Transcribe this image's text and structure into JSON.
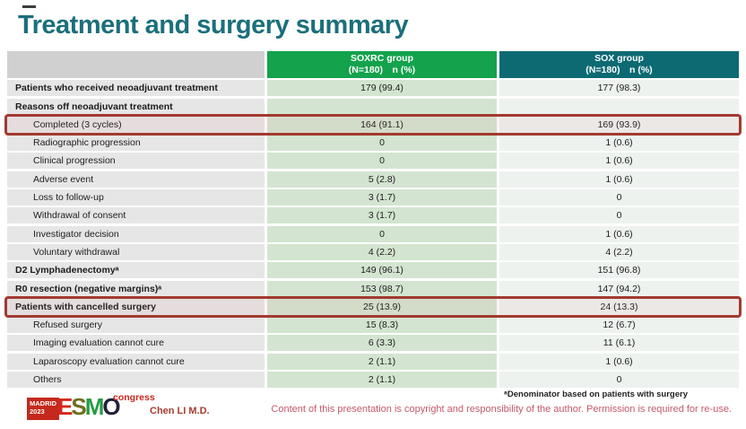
{
  "slide": {
    "title": "Treatment and surgery summary",
    "footnote": "ᵃDenominator based on patients with surgery",
    "copyright": "Content of this presentation is copyright and responsibility of the author. Permission is required for re-use.",
    "author": "Chen LI M.D."
  },
  "logo": {
    "location": "MADRID",
    "year": "2023",
    "letter_e": "E",
    "letter_s": "S",
    "letter_m": "M",
    "letter_o": "O",
    "congress": "congress"
  },
  "colors": {
    "title_teal": "#1b6f7b",
    "soxrc_header_green": "#14a24d",
    "sox_header_teal": "#0d6a72",
    "label_column_gray": "#e7e6e6",
    "soxrc_column_green": "#d3e5d0",
    "sox_column_light": "#edf2ef",
    "highlight_box_red": "#a33a30",
    "logo_red": "#c5281c",
    "copyright_pink": "#c4596b"
  },
  "table": {
    "columns": [
      {
        "name": "SOXRC group",
        "sub": "(N=180)　n (%)"
      },
      {
        "name": "SOX group",
        "sub": "(N=180)　n (%)"
      }
    ],
    "rows": [
      {
        "label": "Patients who received neoadjuvant treatment",
        "soxrc": "179 (99.4)",
        "sox": "177 (98.3)"
      },
      {
        "label": "Reasons off neoadjuvant treatment",
        "soxrc": "",
        "sox": ""
      },
      {
        "label": "Completed (3 cycles)",
        "soxrc": "164 (91.1)",
        "sox": "169 (93.9)"
      },
      {
        "label": "Radiographic progression",
        "soxrc": "0",
        "sox": "1 (0.6)"
      },
      {
        "label": "Clinical progression",
        "soxrc": "0",
        "sox": "1 (0.6)"
      },
      {
        "label": "Adverse event",
        "soxrc": "5 (2.8)",
        "sox": "1 (0.6)"
      },
      {
        "label": "Loss to follow-up",
        "soxrc": "3 (1.7)",
        "sox": "0"
      },
      {
        "label": "Withdrawal of consent",
        "soxrc": "3 (1.7)",
        "sox": "0"
      },
      {
        "label": "Investigator decision",
        "soxrc": "0",
        "sox": "1 (0.6)"
      },
      {
        "label": "Voluntary withdrawal",
        "soxrc": "4 (2.2)",
        "sox": "4 (2.2)"
      },
      {
        "label": "D2 Lymphadenectomyᵃ",
        "soxrc": "149 (96.1)",
        "sox": "151 (96.8)"
      },
      {
        "label": "R0 resection (negative margins)ᵃ",
        "soxrc": "153 (98.7)",
        "sox": "147 (94.2)"
      },
      {
        "label": "Patients with cancelled surgery",
        "soxrc": "25 (13.9)",
        "sox": "24 (13.3)"
      },
      {
        "label": "Refused surgery",
        "soxrc": "15 (8.3)",
        "sox": "12 (6.7)"
      },
      {
        "label": "Imaging evaluation cannot cure",
        "soxrc": "6 (3.3)",
        "sox": "11 (6.1)"
      },
      {
        "label": "Laparoscopy evaluation cannot cure",
        "soxrc": "2 (1.1)",
        "sox": "1 (0.6)"
      },
      {
        "label": "Others",
        "soxrc": "2 (1.1)",
        "sox": "0"
      }
    ]
  }
}
